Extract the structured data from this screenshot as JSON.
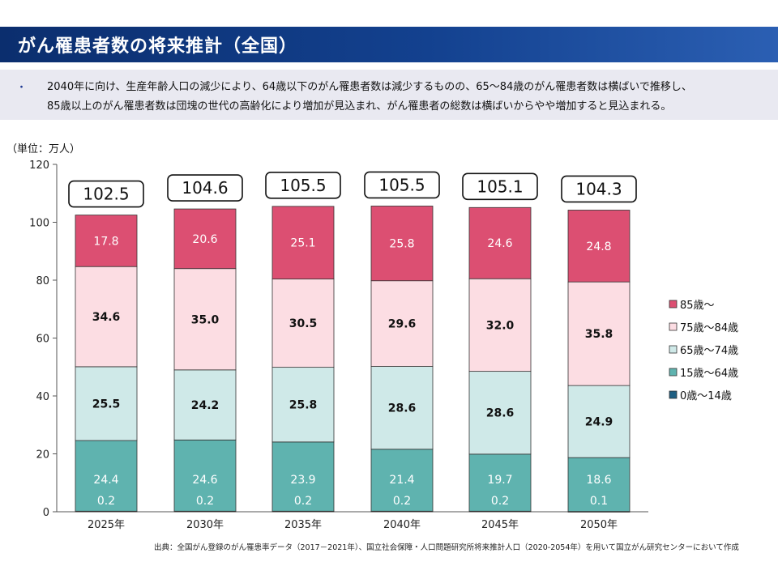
{
  "header": {
    "title": "がん罹患者数の将来推計（全国）"
  },
  "summary": {
    "bullet": "・",
    "line1": "2040年に向け、生産年齢人口の減少により、64歳以下のがん罹患者数は減少するものの、65～84歳のがん罹患者数は横ばいで推移し、",
    "line2": "85歳以上のがん罹患者数は団塊の世代の高齢化により増加が見込まれ、がん罹患者の総数は横ばいからやや増加すると見込まれる。"
  },
  "source": "出典：全国がん登録のがん罹患率データ（2017－2021年）、国立社会保障・人口問題研究所将来推計人口（2020-2054年）を用いて国立がん研究センターにおいて作成",
  "chart_data": {
    "type": "bar",
    "stacked": true,
    "unit_label": "（単位：万人）",
    "categories": [
      "2025年",
      "2030年",
      "2035年",
      "2040年",
      "2045年",
      "2050年"
    ],
    "ylim": [
      0,
      120
    ],
    "yticks": [
      0,
      20,
      40,
      60,
      80,
      100,
      120
    ],
    "totals": [
      "102.5",
      "104.6",
      "105.5",
      "105.5",
      "105.1",
      "104.3"
    ],
    "series": [
      {
        "name": "0歳～14歳",
        "color": "#1f5f82",
        "values": [
          0.2,
          0.2,
          0.2,
          0.2,
          0.2,
          0.1
        ],
        "labels": [
          "0.2",
          "0.2",
          "0.2",
          "0.2",
          "0.2",
          "0.1"
        ]
      },
      {
        "name": "15歳～64歳",
        "color": "#5fb3af",
        "values": [
          24.4,
          24.6,
          23.9,
          21.4,
          19.7,
          18.6
        ],
        "labels": [
          "24.4",
          "24.6",
          "23.9",
          "21.4",
          "19.7",
          "18.6"
        ]
      },
      {
        "name": "65歳～74歳",
        "color": "#cfe9e8",
        "values": [
          25.5,
          24.2,
          25.8,
          28.6,
          28.6,
          24.9
        ],
        "labels": [
          "25.5",
          "24.2",
          "25.8",
          "28.6",
          "28.6",
          "24.9"
        ]
      },
      {
        "name": "75歳～84歳",
        "color": "#fcdde3",
        "values": [
          34.6,
          35.0,
          30.5,
          29.6,
          32.0,
          35.8
        ],
        "labels": [
          "34.6",
          "35.0",
          "30.5",
          "29.6",
          "32.0",
          "35.8"
        ]
      },
      {
        "name": "85歳～",
        "color": "#dc4f72",
        "values": [
          17.8,
          20.6,
          25.1,
          25.8,
          24.6,
          24.8
        ],
        "labels": [
          "17.8",
          "20.6",
          "25.1",
          "25.8",
          "24.6",
          "24.8"
        ]
      }
    ],
    "legend_order": [
      "85歳～",
      "75歳～84歳",
      "65歳～74歳",
      "15歳～64歳",
      "0歳～14歳"
    ],
    "legend_position": "right",
    "grid": false
  }
}
